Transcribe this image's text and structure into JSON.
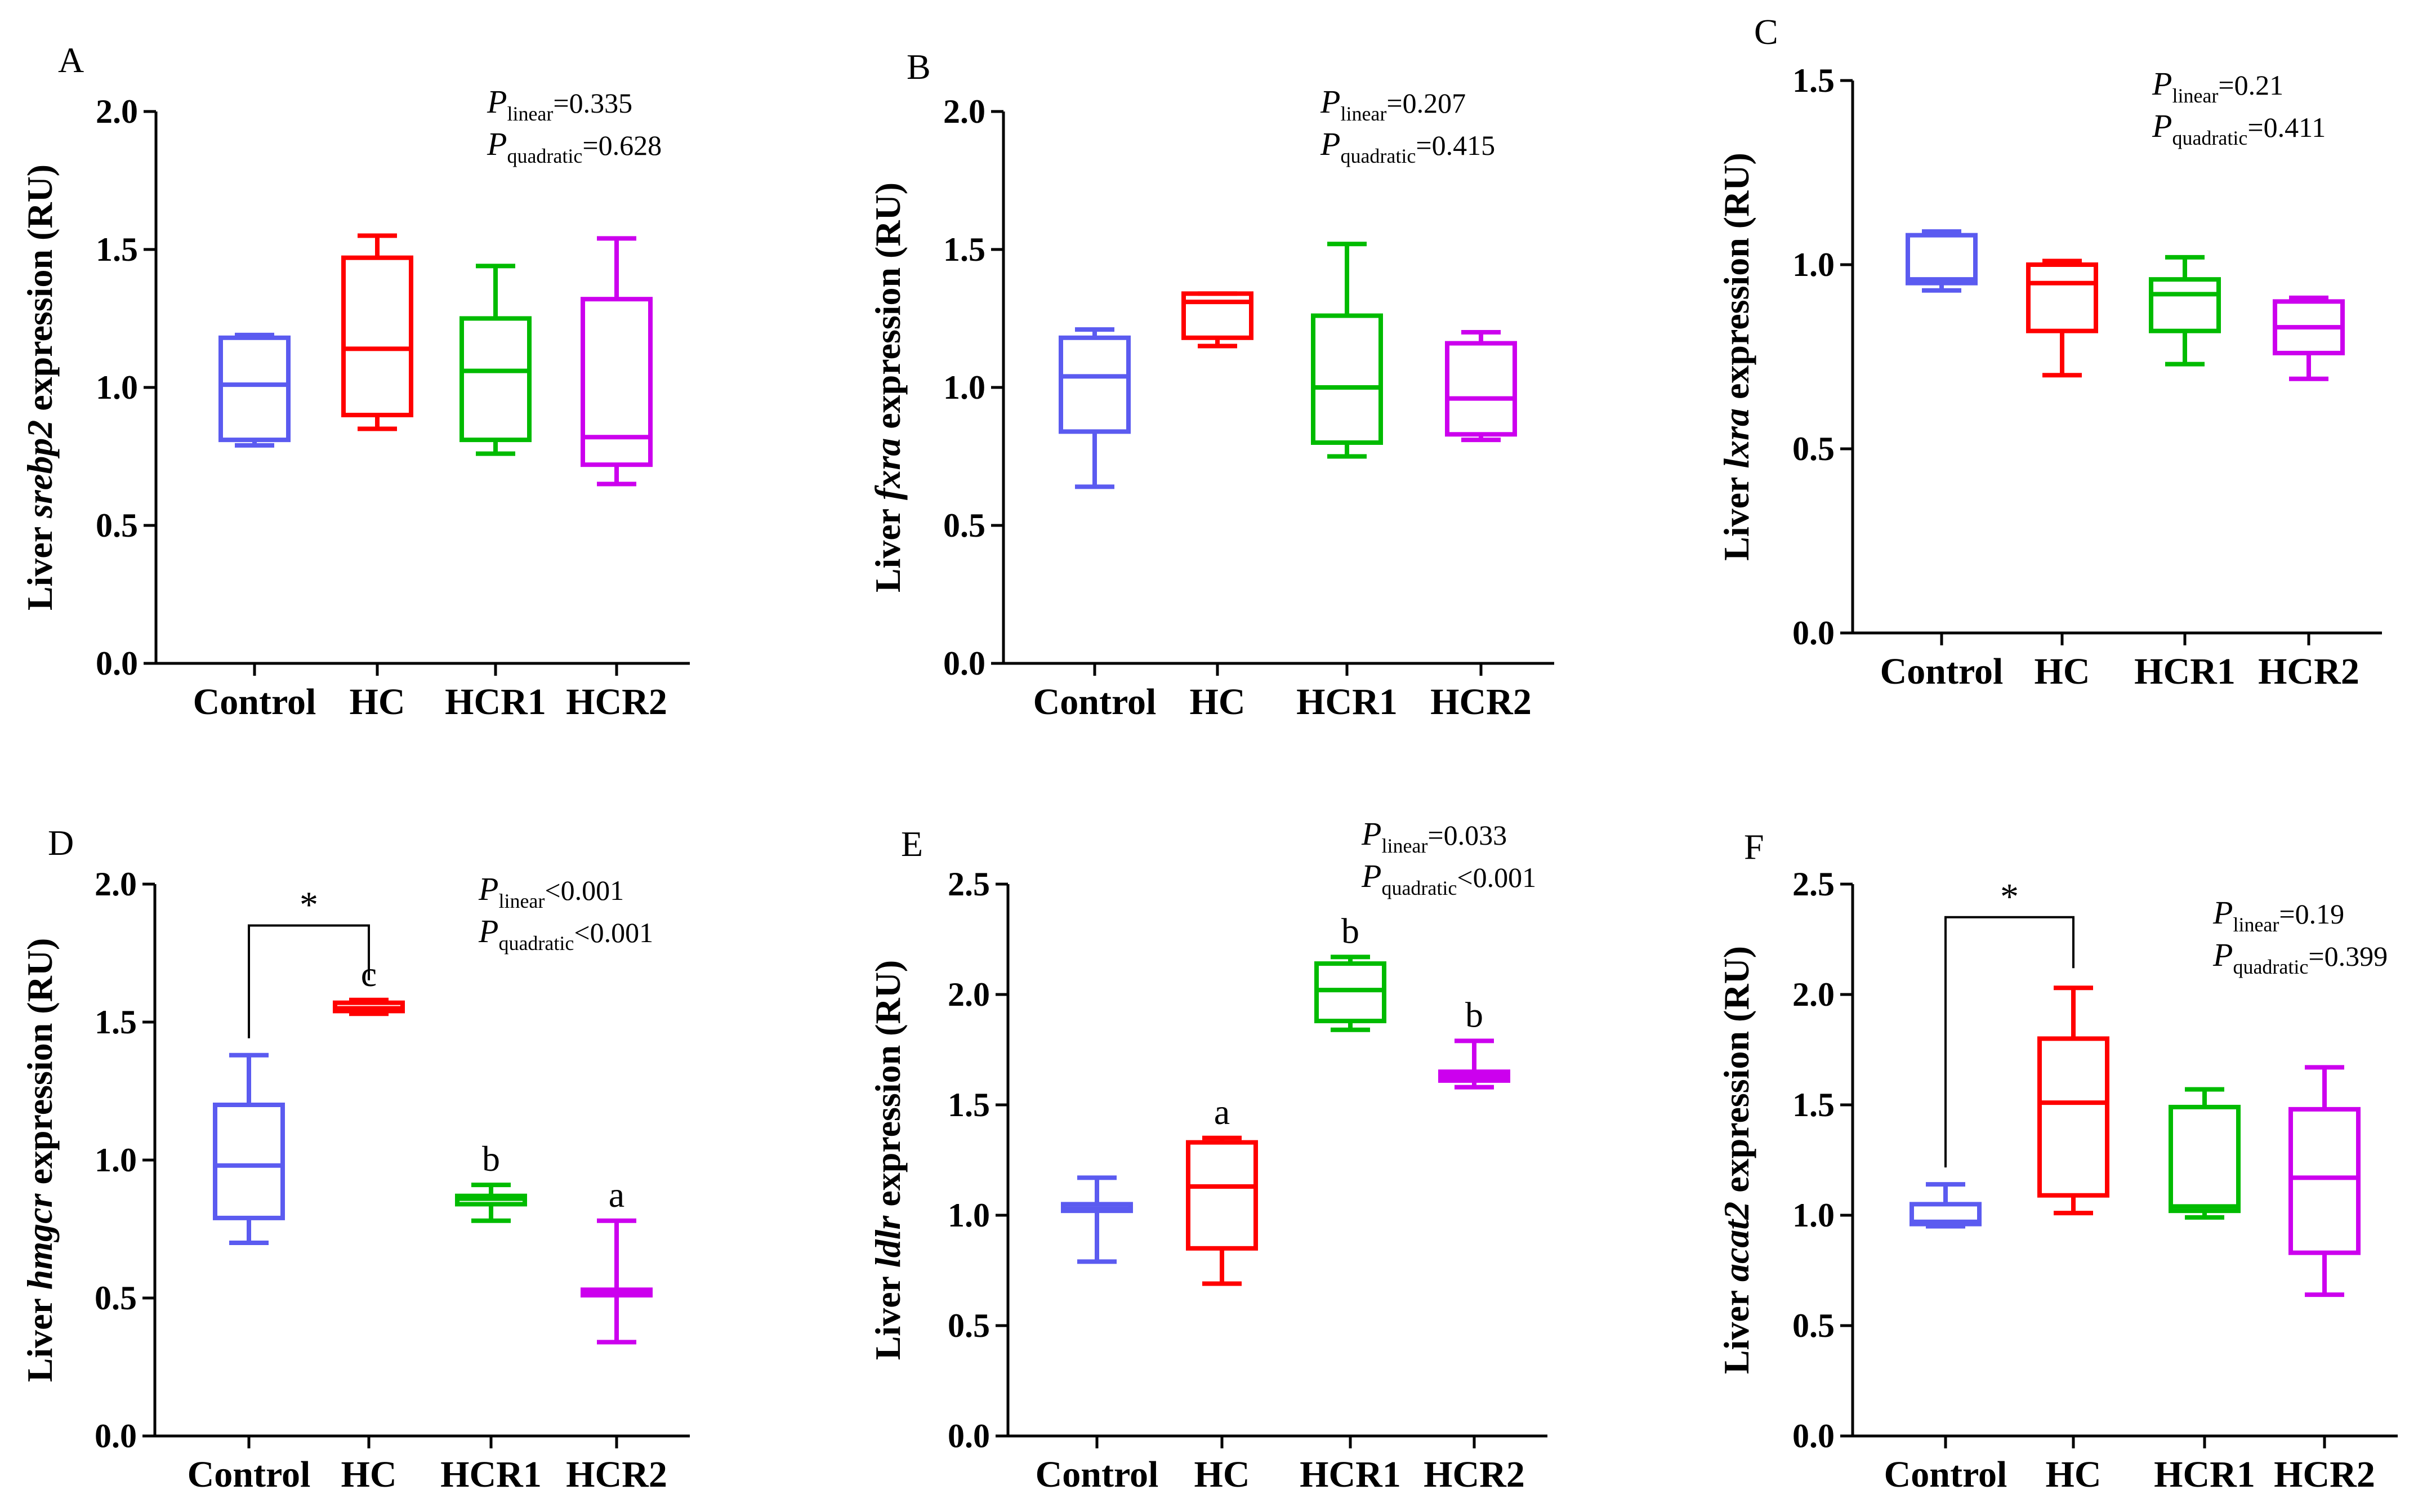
{
  "colors": {
    "Control": "#5b5bf0",
    "HC": "#ff0000",
    "HCR1": "#00bb00",
    "HCR2": "#cc00ee",
    "axis": "#000000"
  },
  "chart_data": [
    {
      "panel": "A",
      "type": "box",
      "gene": "srebp2",
      "ylabel_prefix": "Liver ",
      "ylabel_gene": "srebp2",
      "ylabel_suffix": " expression (RU)",
      "ylim": [
        0,
        2.0
      ],
      "yticks": [
        "0.0",
        "0.5",
        "1.0",
        "1.5",
        "2.0"
      ],
      "categories": [
        "Control",
        "HC",
        "HCR1",
        "HCR2"
      ],
      "boxes": [
        {
          "group": "Control",
          "min": 0.79,
          "q1": 0.81,
          "median": 1.01,
          "q3": 1.18,
          "max": 1.19
        },
        {
          "group": "HC",
          "min": 0.85,
          "q1": 0.9,
          "median": 1.14,
          "q3": 1.47,
          "max": 1.55
        },
        {
          "group": "HCR1",
          "min": 0.76,
          "q1": 0.81,
          "median": 1.06,
          "q3": 1.25,
          "max": 1.44
        },
        {
          "group": "HCR2",
          "min": 0.65,
          "q1": 0.72,
          "median": 0.82,
          "q3": 1.32,
          "max": 1.54
        }
      ],
      "letters": [
        "",
        "",
        "",
        ""
      ],
      "p_linear": "=0.335",
      "p_quadratic": "=0.628",
      "significance": null
    },
    {
      "panel": "B",
      "type": "box",
      "gene": "fxra",
      "ylabel_prefix": "Liver ",
      "ylabel_gene": "fxra",
      "ylabel_suffix": " expression (RU)",
      "ylim": [
        0,
        2.0
      ],
      "yticks": [
        "0.0",
        "0.5",
        "1.0",
        "1.5",
        "2.0"
      ],
      "categories": [
        "Control",
        "HC",
        "HCR1",
        "HCR2"
      ],
      "boxes": [
        {
          "group": "Control",
          "min": 0.64,
          "q1": 0.84,
          "median": 1.04,
          "q3": 1.18,
          "max": 1.21
        },
        {
          "group": "HC",
          "min": 1.15,
          "q1": 1.18,
          "median": 1.31,
          "q3": 1.34,
          "max": 1.34
        },
        {
          "group": "HCR1",
          "min": 0.75,
          "q1": 0.8,
          "median": 1.0,
          "q3": 1.26,
          "max": 1.52
        },
        {
          "group": "HCR2",
          "min": 0.81,
          "q1": 0.83,
          "median": 0.96,
          "q3": 1.16,
          "max": 1.2
        }
      ],
      "letters": [
        "",
        "",
        "",
        ""
      ],
      "p_linear": "=0.207",
      "p_quadratic": "=0.415",
      "significance": null
    },
    {
      "panel": "C",
      "type": "box",
      "gene": "lxra",
      "ylabel_prefix": "Liver ",
      "ylabel_gene": "lxra",
      "ylabel_suffix": " expression (RU)",
      "ylim": [
        0,
        1.5
      ],
      "yticks": [
        "0.0",
        "0.5",
        "1.0",
        "1.5"
      ],
      "categories": [
        "Control",
        "HC",
        "HCR1",
        "HCR2"
      ],
      "boxes": [
        {
          "group": "Control",
          "min": 0.93,
          "q1": 0.95,
          "median": 0.96,
          "q3": 1.08,
          "max": 1.09
        },
        {
          "group": "HC",
          "min": 0.7,
          "q1": 0.82,
          "median": 0.95,
          "q3": 1.0,
          "max": 1.01
        },
        {
          "group": "HCR1",
          "min": 0.73,
          "q1": 0.82,
          "median": 0.92,
          "q3": 0.96,
          "max": 1.02
        },
        {
          "group": "HCR2",
          "min": 0.69,
          "q1": 0.76,
          "median": 0.83,
          "q3": 0.9,
          "max": 0.91
        }
      ],
      "letters": [
        "",
        "",
        "",
        ""
      ],
      "p_linear": "=0.21",
      "p_quadratic": "=0.411",
      "significance": null
    },
    {
      "panel": "D",
      "type": "box",
      "gene": "hmgcr",
      "ylabel_prefix": "Liver ",
      "ylabel_gene": "hmgcr",
      "ylabel_suffix": " expression (RU)",
      "ylim": [
        0,
        2.0
      ],
      "yticks": [
        "0.0",
        "0.5",
        "1.0",
        "1.5",
        "2.0"
      ],
      "categories": [
        "Control",
        "HC",
        "HCR1",
        "HCR2"
      ],
      "boxes": [
        {
          "group": "Control",
          "min": 0.7,
          "q1": 0.79,
          "median": 0.98,
          "q3": 1.2,
          "max": 1.38
        },
        {
          "group": "HC",
          "min": 1.53,
          "q1": 1.54,
          "median": 1.55,
          "q3": 1.57,
          "max": 1.58
        },
        {
          "group": "HCR1",
          "min": 0.78,
          "q1": 0.84,
          "median": 0.86,
          "q3": 0.87,
          "max": 0.91
        },
        {
          "group": "HCR2",
          "min": 0.34,
          "q1": 0.51,
          "median": 0.52,
          "q3": 0.53,
          "max": 0.78
        }
      ],
      "letters": [
        "",
        "c",
        "b",
        "a"
      ],
      "p_linear": "<0.001",
      "p_quadratic": "<0.001",
      "significance": {
        "from": 0,
        "to": 1,
        "y": 1.85,
        "label": "*"
      }
    },
    {
      "panel": "E",
      "type": "box",
      "gene": "ldlr",
      "ylabel_prefix": "Liver ",
      "ylabel_gene": "ldlr",
      "ylabel_suffix": " expression (RU)",
      "ylim": [
        0,
        2.5
      ],
      "yticks": [
        "0.0",
        "0.5",
        "1.0",
        "1.5",
        "2.0",
        "2.5"
      ],
      "categories": [
        "Control",
        "HC",
        "HCR1",
        "HCR2"
      ],
      "boxes": [
        {
          "group": "Control",
          "min": 0.79,
          "q1": 1.02,
          "median": 1.03,
          "q3": 1.05,
          "max": 1.17
        },
        {
          "group": "HC",
          "min": 0.69,
          "q1": 0.85,
          "median": 1.13,
          "q3": 1.33,
          "max": 1.35
        },
        {
          "group": "HCR1",
          "min": 1.84,
          "q1": 1.88,
          "median": 2.02,
          "q3": 2.14,
          "max": 2.17
        },
        {
          "group": "HCR2",
          "min": 1.58,
          "q1": 1.61,
          "median": 1.63,
          "q3": 1.65,
          "max": 1.79
        }
      ],
      "letters": [
        "",
        "a",
        "b",
        "b"
      ],
      "p_linear": "=0.033",
      "p_quadratic": "<0.001",
      "significance": null
    },
    {
      "panel": "F",
      "type": "box",
      "gene": "acat2",
      "ylabel_prefix": "Liver ",
      "ylabel_gene": "acat2",
      "ylabel_suffix": " expression (RU)",
      "ylim": [
        0,
        2.5
      ],
      "yticks": [
        "0.0",
        "0.5",
        "1.0",
        "1.5",
        "2.0",
        "2.5"
      ],
      "categories": [
        "Control",
        "HC",
        "HCR1",
        "HCR2"
      ],
      "boxes": [
        {
          "group": "Control",
          "min": 0.95,
          "q1": 0.96,
          "median": 0.97,
          "q3": 1.05,
          "max": 1.14
        },
        {
          "group": "HC",
          "min": 1.01,
          "q1": 1.09,
          "median": 1.51,
          "q3": 1.8,
          "max": 2.03
        },
        {
          "group": "HCR1",
          "min": 0.99,
          "q1": 1.02,
          "median": 1.04,
          "q3": 1.49,
          "max": 1.57
        },
        {
          "group": "HCR2",
          "min": 0.64,
          "q1": 0.83,
          "median": 1.17,
          "q3": 1.48,
          "max": 1.67
        }
      ],
      "letters": [
        "",
        "",
        "",
        ""
      ],
      "p_linear": "=0.19",
      "p_quadratic": "=0.399",
      "significance": {
        "from": 0,
        "to": 1,
        "y": 2.35,
        "label": "*"
      }
    }
  ],
  "labels": {
    "p_letter": "P",
    "linear_sub": "linear",
    "quadratic_sub": "quadratic"
  }
}
